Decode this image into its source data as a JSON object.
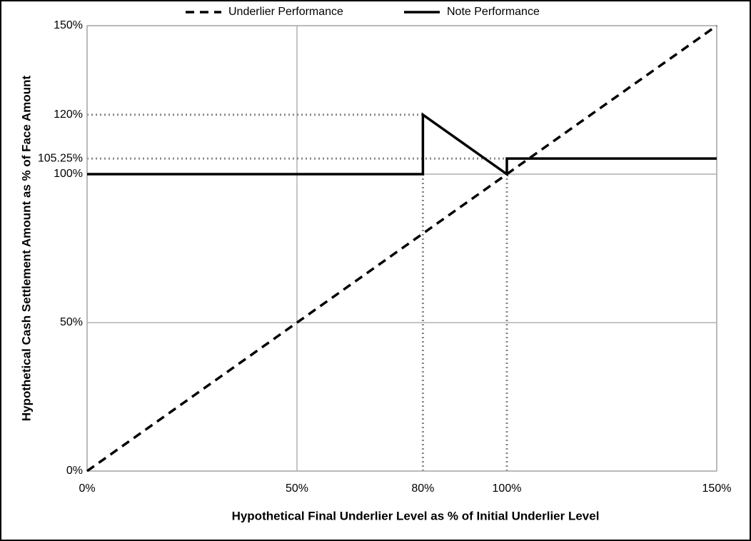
{
  "chart_data": {
    "type": "line",
    "x_label": "Hypothetical Final Underlier Level as % of Initial Underlier Level",
    "y_label": "Hypothetical Cash Settlement Amount as % of Face Amount",
    "xlim": [
      0,
      150
    ],
    "ylim": [
      0,
      150
    ],
    "xticks": [
      {
        "value": 0,
        "label": "0%"
      },
      {
        "value": 50,
        "label": "50%"
      },
      {
        "value": 80,
        "label": "80%"
      },
      {
        "value": 100,
        "label": "100%"
      },
      {
        "value": 150,
        "label": "150%"
      }
    ],
    "yticks": [
      {
        "value": 0,
        "label": "0%"
      },
      {
        "value": 50,
        "label": "50%"
      },
      {
        "value": 100,
        "label": "100%"
      },
      {
        "value": 105.25,
        "label": "105.25%"
      },
      {
        "value": 120,
        "label": "120%"
      },
      {
        "value": 150,
        "label": "150%"
      }
    ],
    "grid": true,
    "legend": "top",
    "reference_lines": [
      {
        "x": 80,
        "y": 120
      },
      {
        "x": 100,
        "y": 105.25
      }
    ],
    "series": [
      {
        "name": "Underlier Performance",
        "color": "#000000",
        "dash": "dashed",
        "x": [
          0,
          150
        ],
        "values": [
          0,
          150
        ]
      },
      {
        "name": "Note Performance",
        "color": "#000000",
        "dash": "solid",
        "x": [
          0,
          80,
          80,
          100,
          100,
          150
        ],
        "values": [
          100,
          100,
          120,
          100,
          105.25,
          105.25
        ]
      }
    ]
  }
}
